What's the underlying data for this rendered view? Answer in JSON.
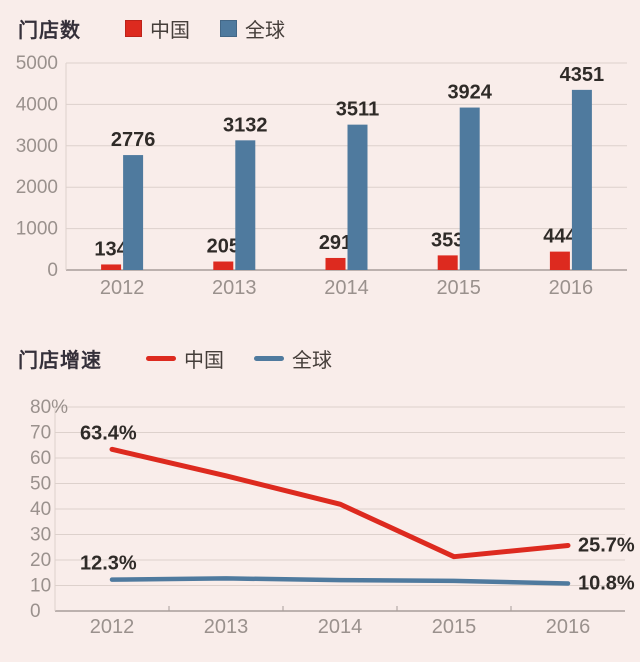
{
  "page": {
    "background": "#f9edea"
  },
  "colors": {
    "china_red": "#dd2a1f",
    "global_blue": "#4f7a9e",
    "grid_line": "#ddd1cc",
    "axis_line": "#a89d99",
    "tick_label": "#9a918d",
    "value_label": "#2f2b28",
    "title_text": "#35303a",
    "legend_text": "#453e3a"
  },
  "chart_data": [
    {
      "type": "bar",
      "title": "门店数",
      "categories": [
        "2012",
        "2013",
        "2014",
        "2015",
        "2016"
      ],
      "series": [
        {
          "name": "中国",
          "slug": "china",
          "color": "#dd2a1f",
          "values": [
            134,
            205,
            291,
            353,
            444
          ]
        },
        {
          "name": "全球",
          "slug": "global",
          "color": "#4f7a9e",
          "values": [
            2776,
            3132,
            3511,
            3924,
            4351
          ]
        }
      ],
      "ylim": [
        0,
        5000
      ],
      "yticks": [
        "0",
        "1000",
        "2000",
        "3000",
        "4000",
        "5000"
      ],
      "grid": true,
      "data_labels": true,
      "legend_position": "top"
    },
    {
      "type": "line",
      "title": "门店增速",
      "categories": [
        "2012",
        "2013",
        "2014",
        "2015",
        "2016"
      ],
      "series": [
        {
          "name": "中国",
          "slug": "china",
          "color": "#dd2a1f",
          "values": [
            63.4,
            53.0,
            41.9,
            21.3,
            25.7
          ]
        },
        {
          "name": "全球",
          "slug": "global",
          "color": "#4f7a9e",
          "values": [
            12.3,
            12.8,
            12.1,
            11.8,
            10.8
          ]
        }
      ],
      "ylim": [
        0,
        80
      ],
      "yticks": [
        "0",
        "10",
        "20",
        "30",
        "40",
        "50",
        "60",
        "70",
        "80%"
      ],
      "annotations": [
        {
          "text": "63.4%",
          "series": 0,
          "index": 0,
          "placement": "start"
        },
        {
          "text": "25.7%",
          "series": 0,
          "index": 4,
          "placement": "end"
        },
        {
          "text": "12.3%",
          "series": 1,
          "index": 0,
          "placement": "start"
        },
        {
          "text": "10.8%",
          "series": 1,
          "index": 4,
          "placement": "end"
        }
      ],
      "grid": true,
      "legend_position": "top"
    }
  ]
}
